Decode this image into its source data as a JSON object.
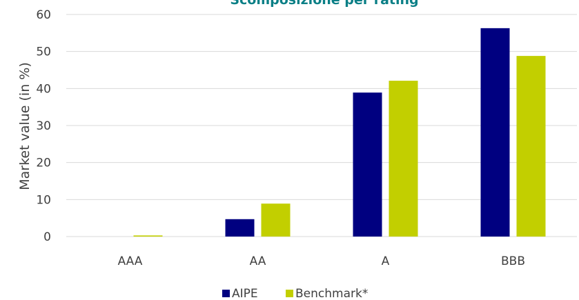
{
  "chart_data": {
    "type": "bar",
    "title": "Scomposizione per rating",
    "ylabel": "Market value (in %)",
    "xlabel": "",
    "categories": [
      "AAA",
      "AA",
      "A",
      "BBB"
    ],
    "series": [
      {
        "name": "AIPE",
        "values": [
          0,
          4.7,
          38.9,
          56.3
        ],
        "color": "#000080"
      },
      {
        "name": "Benchmark*",
        "values": [
          0.3,
          8.9,
          42.1,
          48.8
        ],
        "color": "#c2cf00"
      }
    ],
    "ylim": [
      0,
      60
    ],
    "yticks": [
      "0",
      "10",
      "20",
      "30",
      "40",
      "50",
      "60"
    ],
    "grid": true,
    "legend_position": "bottom",
    "colors": {
      "gridline": "#d9d9d9",
      "title": "#0a7f86",
      "text": "#404040"
    }
  }
}
